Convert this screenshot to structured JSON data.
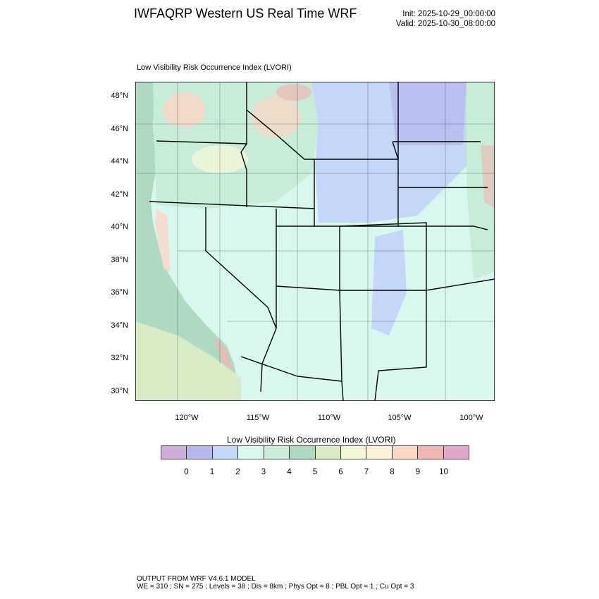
{
  "header": {
    "title": "IWFAQRP Western US Real Time WRF",
    "init": "Init: 2025-10-29_00:00:00",
    "valid": "Valid: 2025-10-30_08:00:00"
  },
  "map": {
    "subtitle": "Low Visibility Risk Occurrence Index   (LVORI)",
    "lat_labels": [
      "48°N",
      "46°N",
      "44°N",
      "42°N",
      "40°N",
      "38°N",
      "36°N",
      "34°N",
      "32°N",
      "30°N"
    ],
    "lon_labels": [
      "120°W",
      "115°W",
      "110°W",
      "105°W",
      "100°W"
    ]
  },
  "colorbar": {
    "title": "Low Visibility Risk Occurrence Index  (LVORI)",
    "labels": [
      "0",
      "1",
      "2",
      "3",
      "4",
      "5",
      "6",
      "7",
      "8",
      "9",
      "10"
    ],
    "colors": [
      "#cfadd9",
      "#b4b8ec",
      "#c6d6f9",
      "#d8f8ef",
      "#c7ecd8",
      "#b0d9c2",
      "#d8ecc5",
      "#f1f8d6",
      "#fdf1d7",
      "#fdd6c4",
      "#efb7b3",
      "#dfa7c9"
    ]
  },
  "footer": {
    "line1": "OUTPUT FROM WRF V4.6.1 MODEL",
    "line2": "WE = 310 ; SN = 275 ; Levels = 38 ; Dis = 8km ; Phys Opt = 8 ; PBL Opt = 1 ; Cu Opt = 3"
  }
}
